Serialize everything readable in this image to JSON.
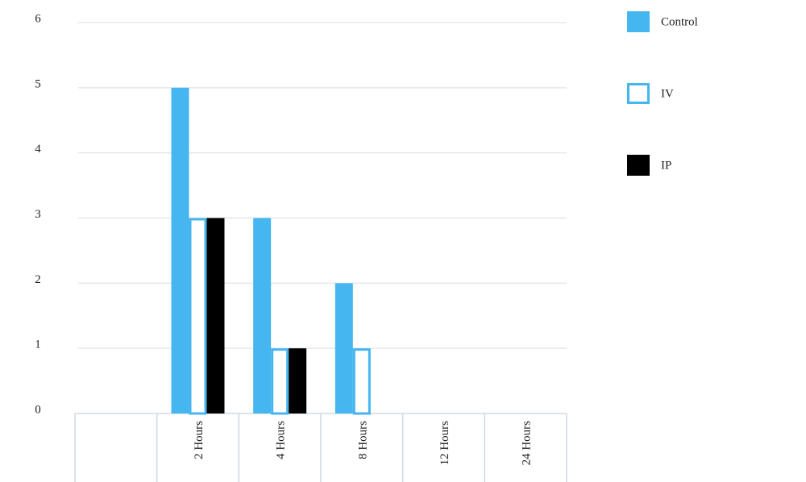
{
  "chart_data": {
    "type": "bar",
    "categories": [
      null,
      "2 Hours",
      "4 Hours",
      "8 Hours",
      "12 Hours",
      "24 Hours"
    ],
    "series": [
      {
        "name": "Control",
        "color": "#45b6f0",
        "fill": "#45b6f0",
        "values": [
          null,
          5,
          3,
          2,
          0,
          0
        ]
      },
      {
        "name": "IV",
        "color": "#45b6f0",
        "fill": "#ffffff",
        "values": [
          null,
          3,
          1,
          1,
          0,
          0
        ]
      },
      {
        "name": "IP",
        "color": "#000000",
        "fill": "#000000",
        "values": [
          null,
          3,
          1,
          0,
          0,
          0
        ]
      }
    ],
    "ylim": [
      0,
      6
    ],
    "yticks": [
      0,
      1,
      2,
      3,
      4,
      5,
      6
    ],
    "grid": true,
    "legend": "right"
  }
}
